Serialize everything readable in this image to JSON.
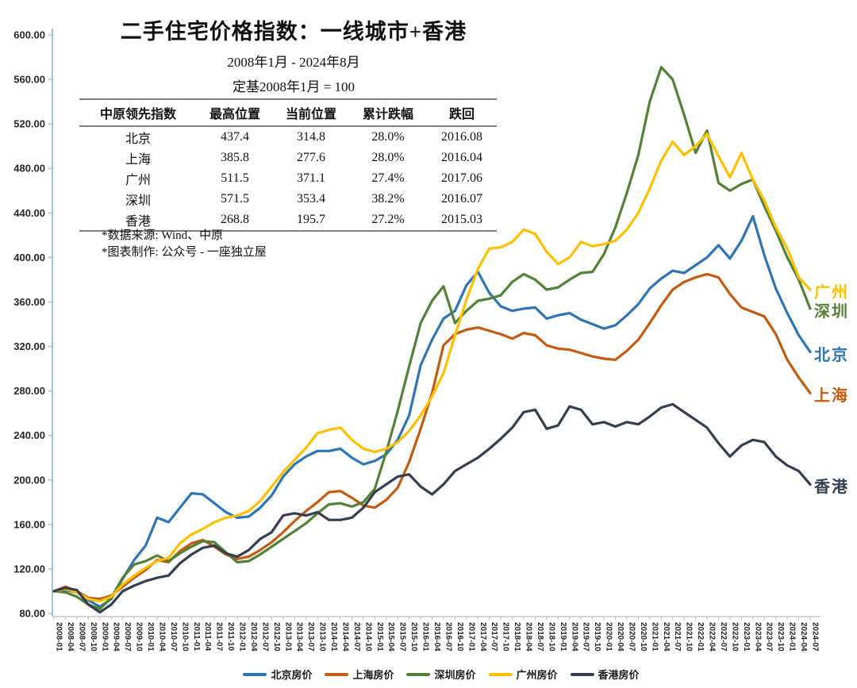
{
  "title": "二手住宅价格指数：一线城市+香港",
  "subtitle_period": "2008年1月 - 2024年8月",
  "subtitle_base": "定基2008年1月 = 100",
  "table": {
    "headers": [
      "中原领先指数",
      "最高位置",
      "当前位置",
      "累计跌幅",
      "跌回"
    ],
    "rows": [
      [
        "北京",
        "437.4",
        "314.8",
        "28.0%",
        "2016.08"
      ],
      [
        "上海",
        "385.8",
        "277.6",
        "28.0%",
        "2016.04"
      ],
      [
        "广州",
        "511.5",
        "371.1",
        "27.4%",
        "2017.06"
      ],
      [
        "深圳",
        "571.5",
        "353.4",
        "38.2%",
        "2016.07"
      ],
      [
        "香港",
        "268.8",
        "195.7",
        "27.2%",
        "2015.03"
      ]
    ]
  },
  "notes": [
    "*数据来源: Wind、中原",
    "*图表制作: 公众号 - 一座独立屋"
  ],
  "chart_data": {
    "type": "line",
    "title": "二手住宅价格指数：一线城市+香港",
    "xlabel": "",
    "ylabel": "",
    "ylim": [
      80,
      600
    ],
    "ytick_step": 40,
    "ytick_format": "2-decimals",
    "grid": false,
    "legend_position": "bottom",
    "axis_color": "#9DC3E6",
    "x": [
      "2008-01",
      "2008-04",
      "2008-07",
      "2008-10",
      "2009-01",
      "2009-04",
      "2009-07",
      "2009-10",
      "2010-01",
      "2010-04",
      "2010-07",
      "2010-10",
      "2011-01",
      "2011-04",
      "2011-07",
      "2011-10",
      "2012-01",
      "2012-04",
      "2012-07",
      "2012-10",
      "2013-01",
      "2013-04",
      "2013-07",
      "2013-10",
      "2014-01",
      "2014-04",
      "2014-07",
      "2014-10",
      "2015-01",
      "2015-04",
      "2015-07",
      "2015-10",
      "2016-01",
      "2016-04",
      "2016-07",
      "2016-10",
      "2017-01",
      "2017-04",
      "2017-07",
      "2017-10",
      "2018-01",
      "2018-04",
      "2018-07",
      "2018-10",
      "2019-01",
      "2019-04",
      "2019-07",
      "2019-10",
      "2020-01",
      "2020-04",
      "2020-07",
      "2020-10",
      "2021-01",
      "2021-04",
      "2021-07",
      "2021-10",
      "2022-01",
      "2022-04",
      "2022-07",
      "2022-10",
      "2023-01",
      "2023-04",
      "2023-07",
      "2023-10",
      "2024-01",
      "2024-04",
      "2024-07"
    ],
    "series": [
      {
        "name": "北京房价",
        "end_label": "北京",
        "color": "#2E75B6",
        "values": [
          100,
          101,
          99,
          92,
          86,
          93,
          111,
          128,
          141,
          166,
          162,
          175,
          188,
          187,
          179,
          171,
          166,
          167,
          175,
          186,
          203,
          214,
          221,
          226,
          226,
          228,
          220,
          214,
          217,
          223,
          236,
          258,
          303,
          326,
          345,
          352,
          375,
          387,
          368,
          356,
          352,
          354,
          355,
          345,
          348,
          350,
          344,
          340,
          336,
          339,
          348,
          358,
          372,
          381,
          388,
          386,
          393,
          400,
          411,
          399,
          415,
          437,
          402,
          372,
          350,
          330,
          315
        ]
      },
      {
        "name": "上海房价",
        "end_label": "上海",
        "color": "#C55A11",
        "values": [
          100,
          104,
          100,
          94,
          93,
          96,
          104,
          112,
          119,
          128,
          126,
          136,
          143,
          146,
          140,
          133,
          129,
          131,
          137,
          144,
          153,
          163,
          172,
          180,
          189,
          190,
          184,
          177,
          175,
          182,
          193,
          216,
          246,
          278,
          321,
          331,
          335,
          337,
          334,
          331,
          327,
          332,
          330,
          321,
          318,
          317,
          314,
          311,
          309,
          308,
          316,
          326,
          341,
          357,
          371,
          378,
          382,
          385,
          382,
          367,
          355,
          351,
          347,
          331,
          308,
          292,
          278
        ]
      },
      {
        "name": "深圳房价",
        "end_label": "深圳",
        "color": "#538135",
        "values": [
          100,
          99,
          95,
          88,
          84,
          94,
          112,
          124,
          127,
          132,
          127,
          134,
          140,
          145,
          144,
          135,
          126,
          127,
          133,
          140,
          147,
          154,
          161,
          170,
          178,
          179,
          176,
          180,
          192,
          225,
          262,
          302,
          341,
          361,
          374,
          341,
          352,
          361,
          363,
          366,
          378,
          385,
          380,
          371,
          373,
          380,
          386,
          387,
          403,
          427,
          458,
          492,
          540,
          571,
          560,
          528,
          494,
          514,
          467,
          460,
          466,
          470,
          446,
          424,
          400,
          380,
          354
        ]
      },
      {
        "name": "广州房价",
        "end_label": "广州",
        "color": "#FFC000",
        "values": [
          100,
          102,
          99,
          93,
          91,
          95,
          106,
          114,
          121,
          127,
          130,
          143,
          151,
          156,
          162,
          166,
          168,
          172,
          181,
          194,
          207,
          218,
          229,
          242,
          245,
          247,
          236,
          228,
          225,
          228,
          234,
          244,
          258,
          275,
          296,
          330,
          362,
          390,
          408,
          409,
          414,
          425,
          421,
          405,
          394,
          400,
          414,
          410,
          412,
          415,
          425,
          440,
          462,
          487,
          504,
          492,
          500,
          511,
          491,
          472,
          494,
          470,
          451,
          427,
          408,
          382,
          371
        ]
      },
      {
        "name": "香港房价",
        "end_label": "香港",
        "color": "#333F50",
        "values": [
          100,
          103,
          101,
          88,
          81,
          88,
          100,
          105,
          109,
          112,
          114,
          125,
          133,
          139,
          141,
          134,
          131,
          137,
          147,
          153,
          168,
          170,
          168,
          171,
          164,
          164,
          166,
          175,
          189,
          196,
          203,
          205,
          194,
          187,
          196,
          208,
          214,
          220,
          228,
          237,
          247,
          261,
          263,
          246,
          249,
          266,
          263,
          250,
          252,
          248,
          252,
          250,
          257,
          265,
          268,
          261,
          254,
          247,
          233,
          221,
          231,
          236,
          234,
          221,
          213,
          208,
          196
        ]
      }
    ]
  }
}
